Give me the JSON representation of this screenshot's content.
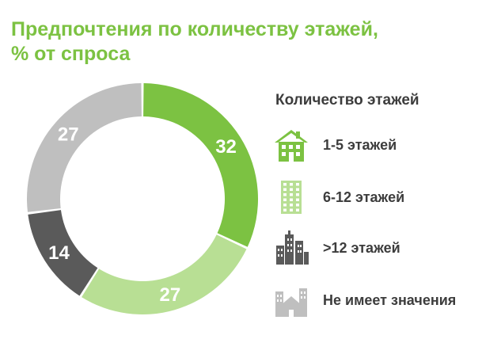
{
  "title_line1": "Предпочтения по количеству этажей,",
  "title_line2": "% от спроса",
  "legend_title": "Количество этажей",
  "colors": {
    "title": "#7cc242",
    "text": "#3d3d3d"
  },
  "chart_data": {
    "type": "pie",
    "variant": "donut",
    "categories": [
      "1-5 этажей",
      "6-12 этажей",
      ">12 этажей",
      "Не имеет значения"
    ],
    "values": [
      32,
      27,
      14,
      27
    ],
    "colors": [
      "#7cc242",
      "#b8df94",
      "#5a5a5a",
      "#bfbfbf"
    ],
    "icons": [
      "house-icon",
      "building-icon",
      "skyscraper-icon",
      "city-icon"
    ],
    "legend": "right"
  }
}
